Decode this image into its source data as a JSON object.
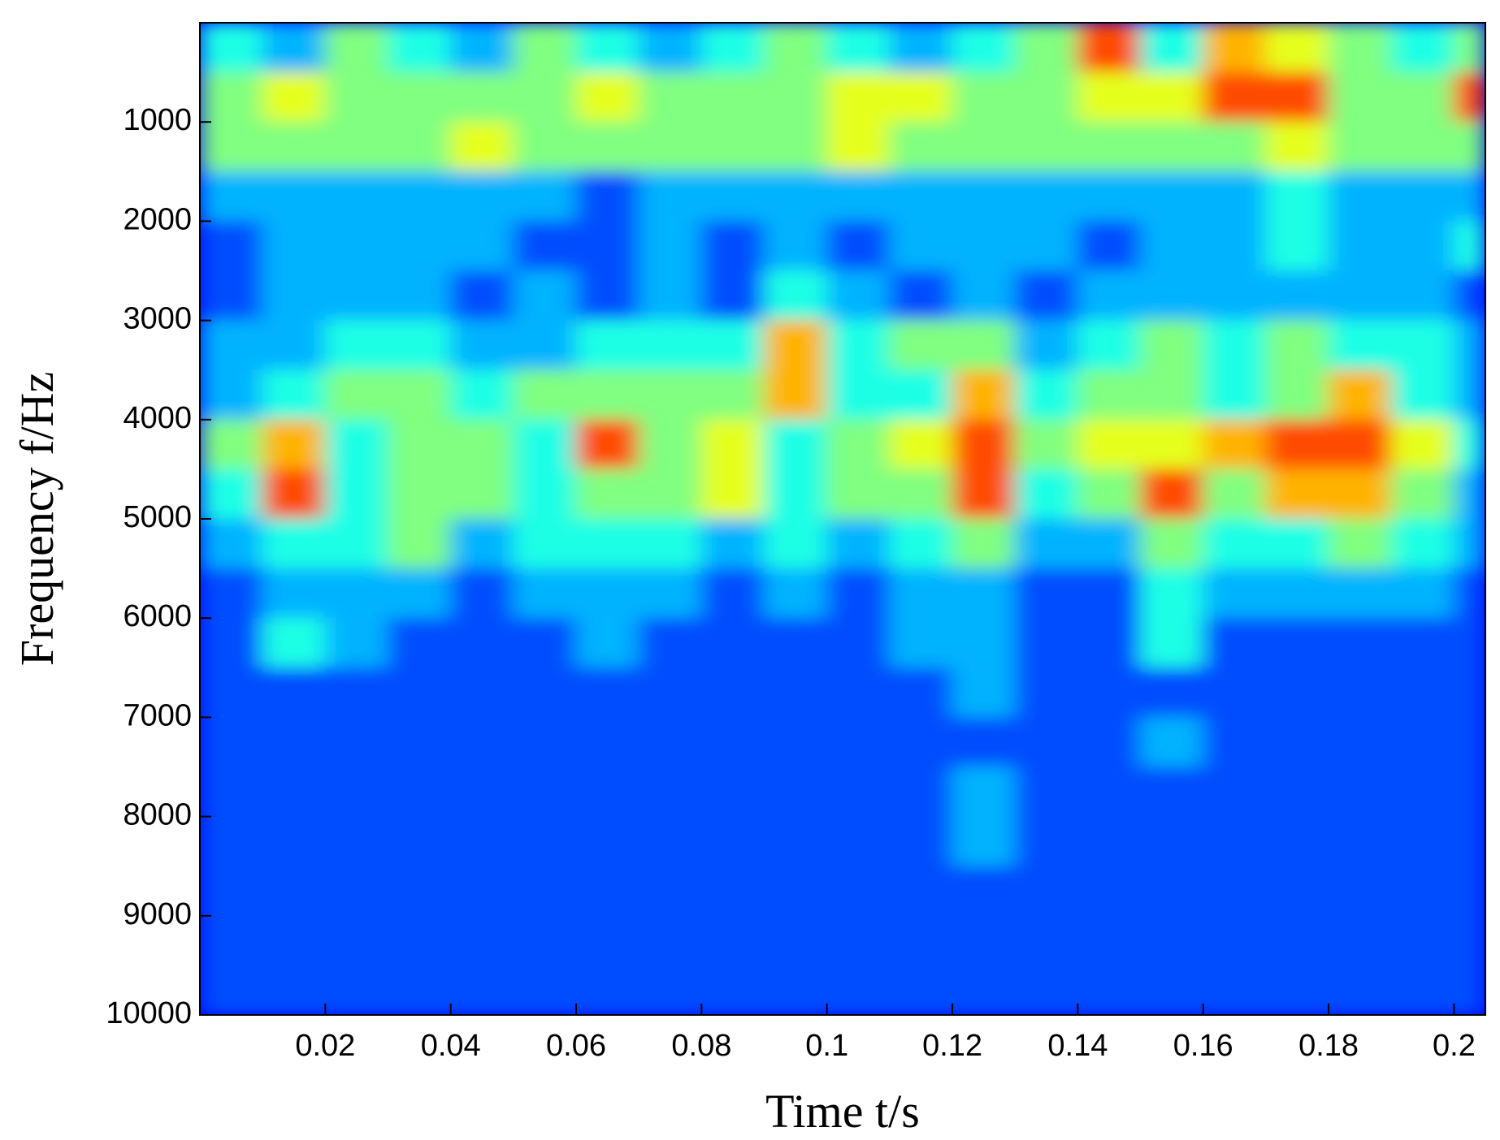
{
  "chart_data": {
    "type": "heatmap",
    "xlabel": "Time t/s",
    "ylabel": "Frequency f/Hz",
    "xlim": [
      0,
      0.205
    ],
    "ylim": [
      10000,
      0
    ],
    "xticks": [
      0.02,
      0.04,
      0.06,
      0.08,
      0.1,
      0.12,
      0.14,
      0.16,
      0.18,
      0.2
    ],
    "yticks": [
      1000,
      2000,
      3000,
      4000,
      5000,
      6000,
      7000,
      8000,
      9000,
      10000
    ],
    "colormap": "jet",
    "zlim": [
      0,
      10
    ],
    "xbins": [
      0,
      0.01,
      0.02,
      0.03,
      0.04,
      0.05,
      0.06,
      0.07,
      0.08,
      0.09,
      0.1,
      0.11,
      0.12,
      0.13,
      0.14,
      0.15,
      0.16,
      0.17,
      0.18,
      0.19,
      0.2,
      0.205
    ],
    "ybins": [
      0,
      500,
      1000,
      1500,
      2000,
      2500,
      3000,
      3500,
      4000,
      4500,
      5000,
      5500,
      6000,
      6500,
      7000,
      7500,
      8000,
      8500,
      9000,
      9500,
      10000
    ],
    "z": [
      [
        4,
        3,
        5,
        4,
        3,
        5,
        4,
        3,
        4,
        5,
        4,
        3,
        4,
        5,
        8,
        4,
        7,
        6,
        5,
        4,
        5
      ],
      [
        5,
        6,
        5,
        5,
        5,
        5,
        6,
        5,
        5,
        5,
        6,
        6,
        5,
        5,
        6,
        6,
        8,
        8,
        5,
        5,
        8
      ],
      [
        5,
        5,
        5,
        5,
        6,
        5,
        5,
        5,
        5,
        5,
        6,
        5,
        5,
        5,
        5,
        5,
        5,
        6,
        5,
        5,
        5
      ],
      [
        3,
        3,
        3,
        3,
        3,
        3,
        2,
        3,
        3,
        3,
        3,
        3,
        3,
        3,
        3,
        3,
        3,
        4,
        3,
        3,
        3
      ],
      [
        2,
        3,
        3,
        3,
        3,
        2,
        2,
        3,
        2,
        3,
        2,
        3,
        3,
        3,
        2,
        3,
        3,
        4,
        3,
        3,
        4
      ],
      [
        2,
        3,
        3,
        3,
        2,
        3,
        2,
        3,
        2,
        4,
        3,
        2,
        3,
        2,
        3,
        3,
        3,
        3,
        3,
        3,
        2
      ],
      [
        3,
        3,
        4,
        4,
        3,
        3,
        4,
        4,
        4,
        7,
        4,
        5,
        5,
        3,
        4,
        5,
        4,
        5,
        4,
        4,
        3
      ],
      [
        3,
        4,
        5,
        5,
        4,
        5,
        5,
        5,
        5,
        7,
        4,
        4,
        7,
        4,
        5,
        5,
        4,
        5,
        7,
        4,
        3
      ],
      [
        5,
        7,
        4,
        5,
        5,
        4,
        8,
        5,
        6,
        4,
        5,
        6,
        8,
        5,
        6,
        6,
        7,
        8,
        8,
        6,
        4
      ],
      [
        4,
        8,
        4,
        5,
        5,
        4,
        5,
        5,
        6,
        4,
        5,
        5,
        8,
        4,
        5,
        8,
        5,
        7,
        7,
        5,
        3
      ],
      [
        3,
        4,
        4,
        5,
        3,
        4,
        4,
        4,
        3,
        4,
        3,
        4,
        5,
        3,
        3,
        5,
        4,
        4,
        5,
        4,
        3
      ],
      [
        2,
        3,
        3,
        3,
        2,
        3,
        3,
        3,
        2,
        3,
        2,
        3,
        3,
        2,
        2,
        4,
        3,
        3,
        3,
        3,
        2
      ],
      [
        2,
        4,
        3,
        2,
        2,
        2,
        3,
        2,
        2,
        2,
        2,
        3,
        3,
        2,
        2,
        4,
        2,
        2,
        2,
        2,
        2
      ],
      [
        2,
        2,
        2,
        2,
        2,
        2,
        2,
        2,
        2,
        2,
        2,
        2,
        3,
        2,
        2,
        2,
        2,
        2,
        2,
        2,
        2
      ],
      [
        2,
        2,
        2,
        2,
        2,
        2,
        2,
        2,
        2,
        2,
        2,
        2,
        2,
        2,
        2,
        3,
        2,
        2,
        2,
        2,
        2
      ],
      [
        2,
        2,
        2,
        2,
        2,
        2,
        2,
        2,
        2,
        2,
        2,
        2,
        3,
        2,
        2,
        2,
        2,
        2,
        2,
        2,
        2
      ],
      [
        2,
        2,
        2,
        2,
        2,
        2,
        2,
        2,
        2,
        2,
        2,
        2,
        3,
        2,
        2,
        2,
        2,
        2,
        2,
        2,
        2
      ],
      [
        2,
        2,
        2,
        2,
        2,
        2,
        2,
        2,
        2,
        2,
        2,
        2,
        2,
        2,
        2,
        2,
        2,
        2,
        2,
        2,
        2
      ],
      [
        2,
        2,
        2,
        2,
        2,
        2,
        2,
        2,
        2,
        2,
        2,
        2,
        2,
        2,
        2,
        2,
        2,
        2,
        2,
        2,
        2
      ],
      [
        2,
        2,
        2,
        2,
        2,
        2,
        2,
        2,
        2,
        2,
        2,
        2,
        2,
        2,
        2,
        2,
        2,
        2,
        2,
        2,
        2
      ]
    ]
  }
}
